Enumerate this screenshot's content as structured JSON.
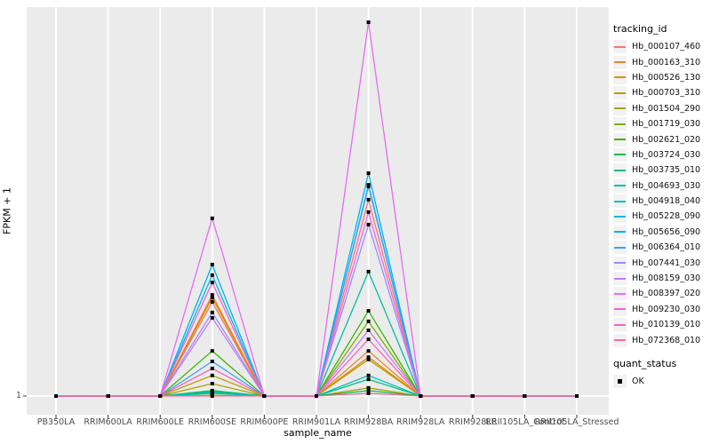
{
  "figure": {
    "panel_background": "#EBEBEB",
    "gridline_color": "#FFFFFF",
    "tick_color": "#333333",
    "tick_label_color": "#4D4D4D",
    "marker_color": "#000000"
  },
  "axes": {
    "x_title": "sample_name",
    "y_title": "FPKM + 1",
    "y_tick_labels": [
      "1"
    ]
  },
  "legend": {
    "color_legend_title": "tracking_id",
    "shape_legend_title": "quant_status",
    "shape_items": [
      {
        "label": "OK",
        "marker": "black-filled-square"
      }
    ]
  },
  "chart_data": {
    "type": "line",
    "title": "",
    "xlabel": "sample_name",
    "ylabel": "FPKM + 1",
    "x": [
      "PB350LA",
      "RRIM600LA",
      "RRIM600LE",
      "RRIM600SE",
      "RRIM600PE",
      "RRIM901LA",
      "RRIM928BA",
      "RRIM928LA",
      "RRIM928LE",
      "RRII105LA_Control",
      "RRII105LA_Stressed"
    ],
    "y_axis_ticks": [
      "1"
    ],
    "baseline_value": 1,
    "grid": "vertical-major-plus-baseline",
    "legend_position": "right",
    "note": "Only the value 1 is labeled on the y axis; series heights are recorded as fraction of panel height above the FPKM+1=1 baseline. All samples sit on the baseline except RRIM600SE and RRIM928BA.",
    "marker": {
      "shape": "filled-square",
      "color": "#000000",
      "meaning": "quant_status OK"
    },
    "series": [
      {
        "name": "Hb_000107_460",
        "color": "#F8766D",
        "heights": [
          0,
          0,
          0,
          0.242,
          0,
          0,
          0.505,
          0,
          0,
          0,
          0
        ]
      },
      {
        "name": "Hb_000163_310",
        "color": "#EA8331",
        "heights": [
          0,
          0,
          0,
          0.26,
          0,
          0,
          0.116,
          0,
          0,
          0,
          0
        ]
      },
      {
        "name": "Hb_000526_130",
        "color": "#D89000",
        "heights": [
          0,
          0,
          0,
          0.253,
          0,
          0,
          0.1,
          0,
          0,
          0,
          0
        ]
      },
      {
        "name": "Hb_000703_310",
        "color": "#C09B00",
        "heights": [
          0,
          0,
          0,
          0.053,
          0,
          0,
          0.094,
          0,
          0,
          0,
          0
        ]
      },
      {
        "name": "Hb_001504_290",
        "color": "#A3A500",
        "heights": [
          0,
          0,
          0,
          0.032,
          0,
          0,
          0.021,
          0,
          0,
          0,
          0
        ]
      },
      {
        "name": "Hb_001719_030",
        "color": "#7CAE00",
        "heights": [
          0,
          0,
          0,
          0.002,
          0,
          0,
          0.192,
          0,
          0,
          0,
          0
        ]
      },
      {
        "name": "Hb_002621_020",
        "color": "#39B600",
        "heights": [
          0,
          0,
          0,
          0.116,
          0,
          0,
          0.219,
          0,
          0,
          0,
          0
        ]
      },
      {
        "name": "Hb_003724_030",
        "color": "#00BB4E",
        "heights": [
          0,
          0,
          0,
          0.014,
          0,
          0,
          0.014,
          0,
          0,
          0,
          0
        ]
      },
      {
        "name": "Hb_003735_010",
        "color": "#00BF7D",
        "heights": [
          0,
          0,
          0,
          0.011,
          0,
          0,
          0.043,
          0,
          0,
          0,
          0
        ]
      },
      {
        "name": "Hb_004693_030",
        "color": "#00C1A3",
        "heights": [
          0,
          0,
          0,
          0.009,
          0,
          0,
          0.32,
          0,
          0,
          0,
          0
        ]
      },
      {
        "name": "Hb_004918_040",
        "color": "#00BFC4",
        "heights": [
          0,
          0,
          0,
          0.007,
          0,
          0,
          0.053,
          0,
          0,
          0,
          0
        ]
      },
      {
        "name": "Hb_005228_090",
        "color": "#00BAE0",
        "heights": [
          0,
          0,
          0,
          0.311,
          0,
          0,
          0.543,
          0,
          0,
          0,
          0
        ]
      },
      {
        "name": "Hb_005656_090",
        "color": "#00B0F6",
        "heights": [
          0,
          0,
          0,
          0.338,
          0,
          0,
          0.573,
          0,
          0,
          0,
          0
        ]
      },
      {
        "name": "Hb_006364_010",
        "color": "#35A2FF",
        "heights": [
          0,
          0,
          0,
          0.089,
          0,
          0,
          0.539,
          0,
          0,
          0,
          0
        ]
      },
      {
        "name": "Hb_007441_030",
        "color": "#9590FF",
        "heights": [
          0,
          0,
          0,
          0.215,
          0,
          0,
          0.441,
          0,
          0,
          0,
          0
        ]
      },
      {
        "name": "Hb_008159_030",
        "color": "#C77CFF",
        "heights": [
          0,
          0,
          0,
          0.201,
          0,
          0,
          0.169,
          0,
          0,
          0,
          0
        ]
      },
      {
        "name": "Hb_008397_020",
        "color": "#E76BF3",
        "heights": [
          0,
          0,
          0,
          0.457,
          0,
          0,
          0.961,
          0,
          0,
          0,
          0
        ]
      },
      {
        "name": "Hb_009230_030",
        "color": "#FA62DB",
        "heights": [
          0,
          0,
          0,
          0.292,
          0,
          0,
          0.473,
          0,
          0,
          0,
          0
        ]
      },
      {
        "name": "Hb_010139_010",
        "color": "#FF62BC",
        "heights": [
          0,
          0,
          0,
          0.071,
          0,
          0,
          0.146,
          0,
          0,
          0,
          0
        ]
      },
      {
        "name": "Hb_072368_010",
        "color": "#FF6A98",
        "heights": [
          0,
          0,
          0,
          0.0,
          0,
          0,
          0.007,
          0,
          0,
          0,
          0
        ]
      }
    ]
  }
}
